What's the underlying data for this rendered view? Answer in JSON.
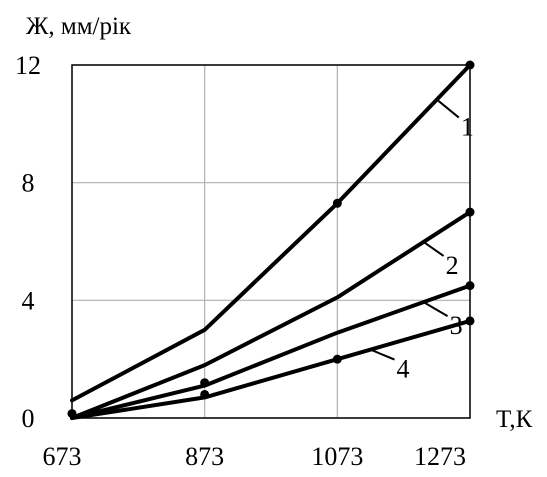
{
  "chart_data": {
    "type": "line",
    "title": "",
    "ylabel": "Ж, мм/рік",
    "xlabel": "T,К",
    "xlim": [
      673,
      1273
    ],
    "ylim": [
      0,
      12
    ],
    "x_ticks": [
      "673",
      "873",
      "1073",
      "1273"
    ],
    "y_ticks": [
      "0",
      "4",
      "8",
      "12"
    ],
    "grid": true,
    "series": [
      {
        "name": "1",
        "x": [
          673,
          873,
          1073,
          1273
        ],
        "y": [
          0.6,
          3.0,
          7.3,
          12.0
        ]
      },
      {
        "name": "2",
        "x": [
          673,
          873,
          1073,
          1273
        ],
        "y": [
          0.0,
          1.8,
          4.1,
          7.0
        ]
      },
      {
        "name": "3",
        "x": [
          673,
          873,
          1073,
          1273
        ],
        "y": [
          0.0,
          1.1,
          2.9,
          4.5
        ]
      },
      {
        "name": "4",
        "x": [
          673,
          873,
          1073,
          1273
        ],
        "y": [
          0.0,
          0.7,
          2.0,
          3.3
        ]
      }
    ],
    "markers": [
      {
        "series": 0,
        "points": [
          [
            673,
            0.15
          ],
          [
            1073,
            7.3
          ],
          [
            1273,
            12.0
          ]
        ]
      },
      {
        "series": 1,
        "points": [
          [
            1273,
            7.0
          ]
        ]
      },
      {
        "series": 2,
        "points": [
          [
            873,
            1.2
          ],
          [
            1273,
            4.5
          ]
        ]
      },
      {
        "series": 3,
        "points": [
          [
            873,
            0.8
          ],
          [
            1073,
            2.0
          ],
          [
            1273,
            3.3
          ]
        ]
      }
    ]
  }
}
